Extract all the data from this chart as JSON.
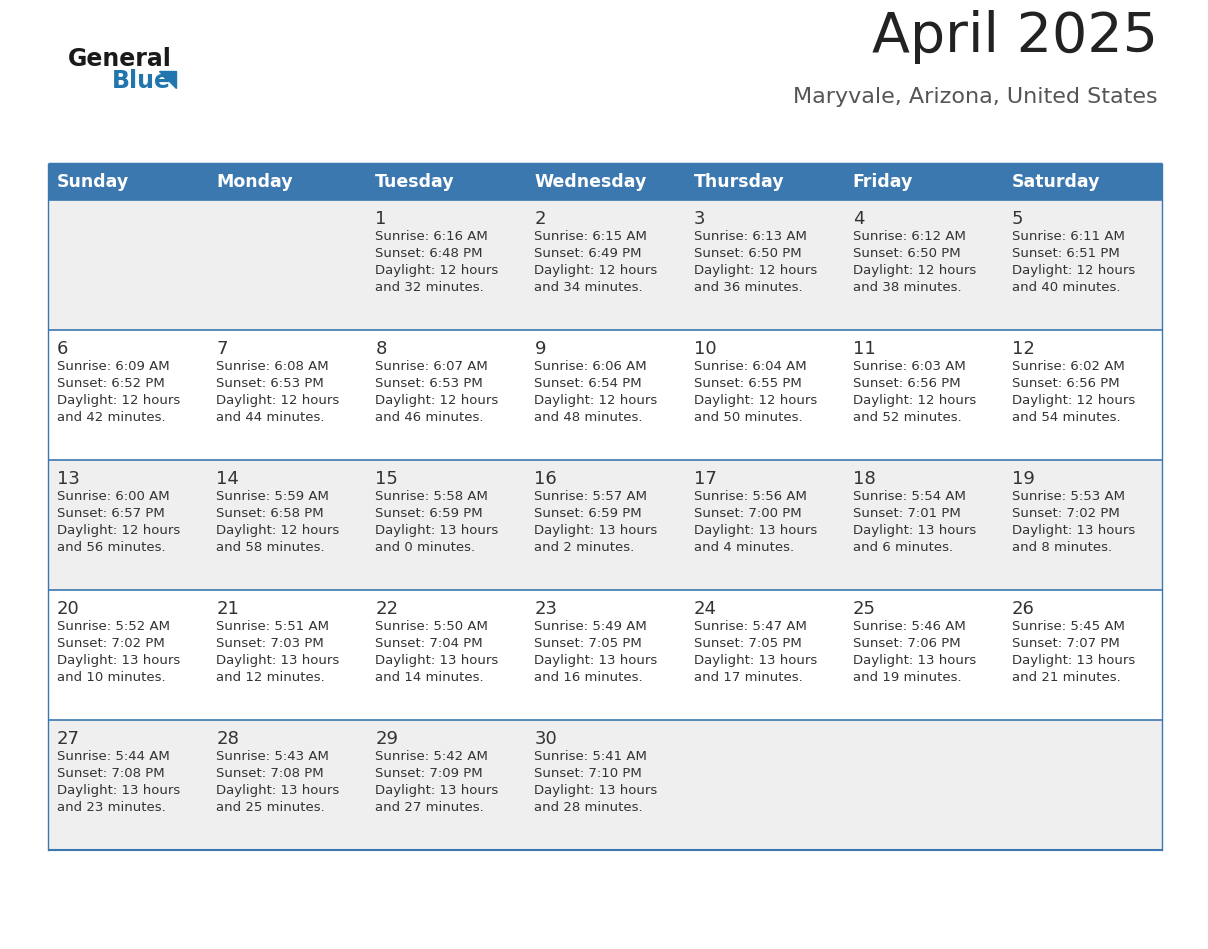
{
  "title": "April 2025",
  "subtitle": "Maryvale, Arizona, United States",
  "days_of_week": [
    "Sunday",
    "Monday",
    "Tuesday",
    "Wednesday",
    "Thursday",
    "Friday",
    "Saturday"
  ],
  "header_bg": "#3b78b0",
  "header_text_color": "#ffffff",
  "row_bg_light": "#efefef",
  "row_bg_white": "#ffffff",
  "cell_text_color": "#333333",
  "border_color": "#3b78b0",
  "title_color": "#222222",
  "subtitle_color": "#555555",
  "logo_general_color": "#1a1a1a",
  "logo_blue_color": "#2176ae",
  "calendar_data": [
    [
      {
        "day": "",
        "sunrise": "",
        "sunset": "",
        "daylight_h": "",
        "daylight_m": ""
      },
      {
        "day": "",
        "sunrise": "",
        "sunset": "",
        "daylight_h": "",
        "daylight_m": ""
      },
      {
        "day": "1",
        "sunrise": "6:16 AM",
        "sunset": "6:48 PM",
        "daylight_h": "12 hours",
        "daylight_m": "and 32 minutes."
      },
      {
        "day": "2",
        "sunrise": "6:15 AM",
        "sunset": "6:49 PM",
        "daylight_h": "12 hours",
        "daylight_m": "and 34 minutes."
      },
      {
        "day": "3",
        "sunrise": "6:13 AM",
        "sunset": "6:50 PM",
        "daylight_h": "12 hours",
        "daylight_m": "and 36 minutes."
      },
      {
        "day": "4",
        "sunrise": "6:12 AM",
        "sunset": "6:50 PM",
        "daylight_h": "12 hours",
        "daylight_m": "and 38 minutes."
      },
      {
        "day": "5",
        "sunrise": "6:11 AM",
        "sunset": "6:51 PM",
        "daylight_h": "12 hours",
        "daylight_m": "and 40 minutes."
      }
    ],
    [
      {
        "day": "6",
        "sunrise": "6:09 AM",
        "sunset": "6:52 PM",
        "daylight_h": "12 hours",
        "daylight_m": "and 42 minutes."
      },
      {
        "day": "7",
        "sunrise": "6:08 AM",
        "sunset": "6:53 PM",
        "daylight_h": "12 hours",
        "daylight_m": "and 44 minutes."
      },
      {
        "day": "8",
        "sunrise": "6:07 AM",
        "sunset": "6:53 PM",
        "daylight_h": "12 hours",
        "daylight_m": "and 46 minutes."
      },
      {
        "day": "9",
        "sunrise": "6:06 AM",
        "sunset": "6:54 PM",
        "daylight_h": "12 hours",
        "daylight_m": "and 48 minutes."
      },
      {
        "day": "10",
        "sunrise": "6:04 AM",
        "sunset": "6:55 PM",
        "daylight_h": "12 hours",
        "daylight_m": "and 50 minutes."
      },
      {
        "day": "11",
        "sunrise": "6:03 AM",
        "sunset": "6:56 PM",
        "daylight_h": "12 hours",
        "daylight_m": "and 52 minutes."
      },
      {
        "day": "12",
        "sunrise": "6:02 AM",
        "sunset": "6:56 PM",
        "daylight_h": "12 hours",
        "daylight_m": "and 54 minutes."
      }
    ],
    [
      {
        "day": "13",
        "sunrise": "6:00 AM",
        "sunset": "6:57 PM",
        "daylight_h": "12 hours",
        "daylight_m": "and 56 minutes."
      },
      {
        "day": "14",
        "sunrise": "5:59 AM",
        "sunset": "6:58 PM",
        "daylight_h": "12 hours",
        "daylight_m": "and 58 minutes."
      },
      {
        "day": "15",
        "sunrise": "5:58 AM",
        "sunset": "6:59 PM",
        "daylight_h": "13 hours",
        "daylight_m": "and 0 minutes."
      },
      {
        "day": "16",
        "sunrise": "5:57 AM",
        "sunset": "6:59 PM",
        "daylight_h": "13 hours",
        "daylight_m": "and 2 minutes."
      },
      {
        "day": "17",
        "sunrise": "5:56 AM",
        "sunset": "7:00 PM",
        "daylight_h": "13 hours",
        "daylight_m": "and 4 minutes."
      },
      {
        "day": "18",
        "sunrise": "5:54 AM",
        "sunset": "7:01 PM",
        "daylight_h": "13 hours",
        "daylight_m": "and 6 minutes."
      },
      {
        "day": "19",
        "sunrise": "5:53 AM",
        "sunset": "7:02 PM",
        "daylight_h": "13 hours",
        "daylight_m": "and 8 minutes."
      }
    ],
    [
      {
        "day": "20",
        "sunrise": "5:52 AM",
        "sunset": "7:02 PM",
        "daylight_h": "13 hours",
        "daylight_m": "and 10 minutes."
      },
      {
        "day": "21",
        "sunrise": "5:51 AM",
        "sunset": "7:03 PM",
        "daylight_h": "13 hours",
        "daylight_m": "and 12 minutes."
      },
      {
        "day": "22",
        "sunrise": "5:50 AM",
        "sunset": "7:04 PM",
        "daylight_h": "13 hours",
        "daylight_m": "and 14 minutes."
      },
      {
        "day": "23",
        "sunrise": "5:49 AM",
        "sunset": "7:05 PM",
        "daylight_h": "13 hours",
        "daylight_m": "and 16 minutes."
      },
      {
        "day": "24",
        "sunrise": "5:47 AM",
        "sunset": "7:05 PM",
        "daylight_h": "13 hours",
        "daylight_m": "and 17 minutes."
      },
      {
        "day": "25",
        "sunrise": "5:46 AM",
        "sunset": "7:06 PM",
        "daylight_h": "13 hours",
        "daylight_m": "and 19 minutes."
      },
      {
        "day": "26",
        "sunrise": "5:45 AM",
        "sunset": "7:07 PM",
        "daylight_h": "13 hours",
        "daylight_m": "and 21 minutes."
      }
    ],
    [
      {
        "day": "27",
        "sunrise": "5:44 AM",
        "sunset": "7:08 PM",
        "daylight_h": "13 hours",
        "daylight_m": "and 23 minutes."
      },
      {
        "day": "28",
        "sunrise": "5:43 AM",
        "sunset": "7:08 PM",
        "daylight_h": "13 hours",
        "daylight_m": "and 25 minutes."
      },
      {
        "day": "29",
        "sunrise": "5:42 AM",
        "sunset": "7:09 PM",
        "daylight_h": "13 hours",
        "daylight_m": "and 27 minutes."
      },
      {
        "day": "30",
        "sunrise": "5:41 AM",
        "sunset": "7:10 PM",
        "daylight_h": "13 hours",
        "daylight_m": "and 28 minutes."
      },
      {
        "day": "",
        "sunrise": "",
        "sunset": "",
        "daylight_h": "",
        "daylight_m": ""
      },
      {
        "day": "",
        "sunrise": "",
        "sunset": "",
        "daylight_h": "",
        "daylight_m": ""
      },
      {
        "day": "",
        "sunrise": "",
        "sunset": "",
        "daylight_h": "",
        "daylight_m": ""
      }
    ]
  ]
}
